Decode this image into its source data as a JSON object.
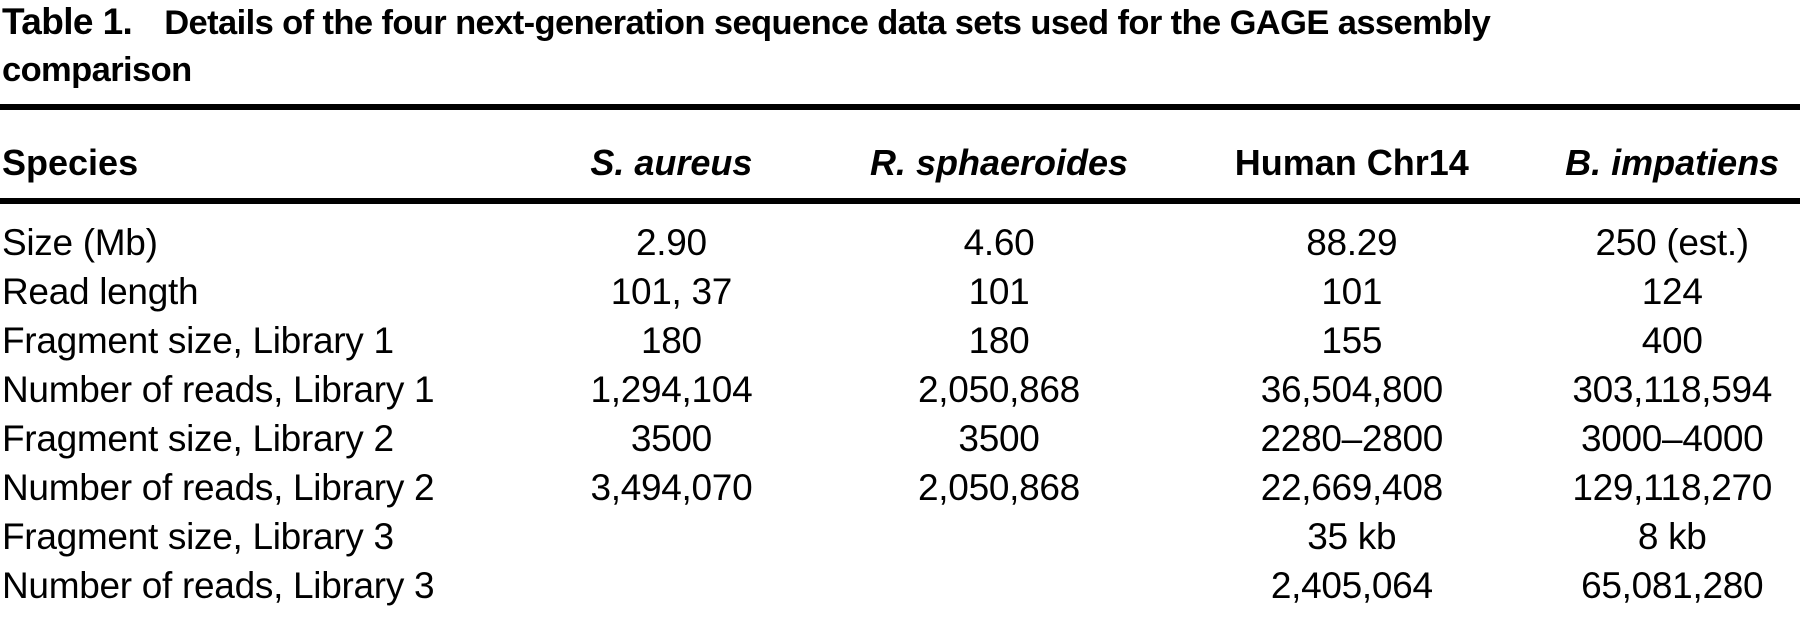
{
  "title": {
    "prefix": "Table 1.",
    "line1": "Details of the four next-generation sequence data sets used for the GAGE assembly",
    "line2": "comparison"
  },
  "table": {
    "columns": [
      "Species",
      "S. aureus",
      "R. sphaeroides",
      "Human Chr14",
      "B. impatiens"
    ],
    "rows": [
      {
        "label": "Size (Mb)",
        "values": [
          "2.90",
          "4.60",
          "88.29",
          "250 (est.)"
        ]
      },
      {
        "label": "Read length",
        "values": [
          "101, 37",
          "101",
          "101",
          "124"
        ]
      },
      {
        "label": "Fragment size, Library 1",
        "values": [
          "180",
          "180",
          "155",
          "400"
        ]
      },
      {
        "label": "Number of reads, Library 1",
        "values": [
          "1,294,104",
          "2,050,868",
          "36,504,800",
          "303,118,594"
        ]
      },
      {
        "label": "Fragment size, Library 2",
        "values": [
          "3500",
          "3500",
          "2280–2800",
          "3000–4000"
        ]
      },
      {
        "label": "Number of reads, Library 2",
        "values": [
          "3,494,070",
          "2,050,868",
          "22,669,408",
          "129,118,270"
        ]
      },
      {
        "label": "Fragment size, Library 3",
        "values": [
          "",
          "",
          "35 kb",
          "8 kb"
        ]
      },
      {
        "label": "Number of reads, Library 3",
        "values": [
          "",
          "",
          "2,405,064",
          "65,081,280"
        ]
      }
    ]
  },
  "colors": {
    "text": "#000000",
    "background": "#ffffff",
    "rule": "#000000"
  }
}
